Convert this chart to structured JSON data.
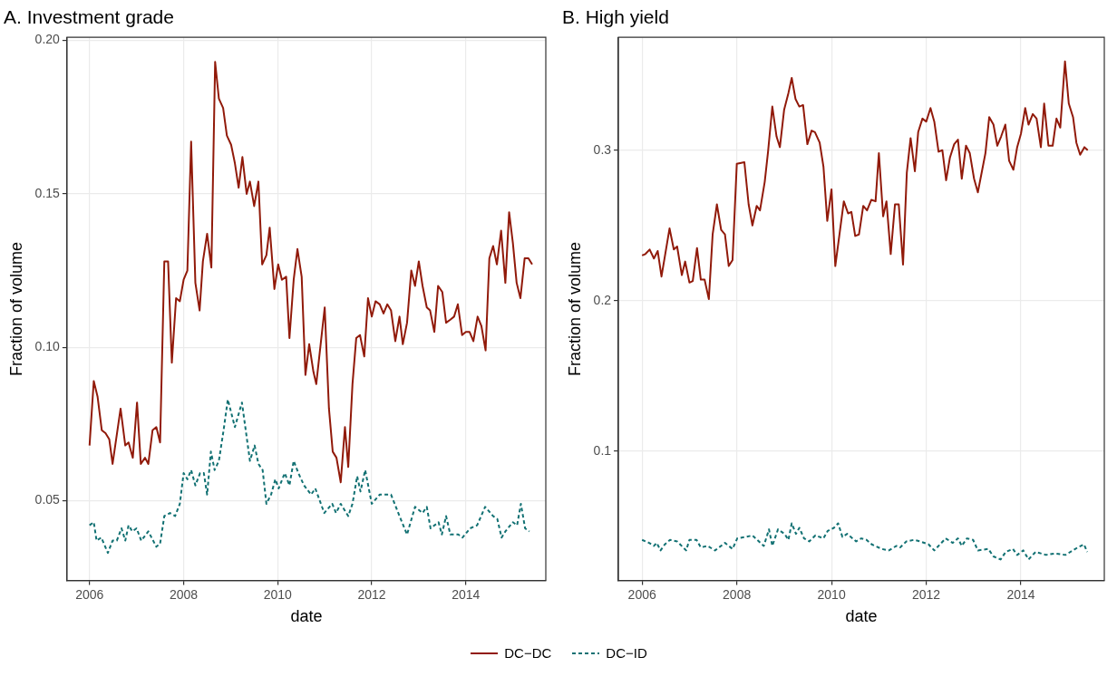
{
  "chart_data": [
    {
      "type": "line",
      "title": "A. Investment grade",
      "xlabel": "date",
      "ylabel": "Fraction of volume",
      "xlim": [
        2005.52,
        2015.7
      ],
      "ylim": [
        0.024,
        0.201
      ],
      "xticks": [
        2006,
        2008,
        2010,
        2012,
        2014
      ],
      "yticks": [
        {
          "value": 0.05,
          "label": "0.05"
        },
        {
          "value": 0.1,
          "label": "0.10"
        },
        {
          "value": 0.15,
          "label": "0.15"
        },
        {
          "value": 0.2,
          "label": "0.20"
        }
      ],
      "grid": true,
      "legend": "bottom",
      "marker": "none",
      "series": [
        {
          "name": "DC−DC",
          "color": "#911a0a",
          "line_style": "solid",
          "x": [
            2006.0,
            2006.09,
            2006.17,
            2006.26,
            2006.34,
            2006.42,
            2006.49,
            2006.66,
            2006.76,
            2006.83,
            2006.92,
            2007.01,
            2007.09,
            2007.18,
            2007.25,
            2007.34,
            2007.42,
            2007.5,
            2007.59,
            2007.67,
            2007.75,
            2007.84,
            2007.92,
            2008.0,
            2008.08,
            2008.16,
            2008.25,
            2008.34,
            2008.41,
            2008.5,
            2008.59,
            2008.67,
            2008.75,
            2008.84,
            2008.92,
            2009.01,
            2009.09,
            2009.17,
            2009.25,
            2009.34,
            2009.41,
            2009.5,
            2009.59,
            2009.67,
            2009.76,
            2009.83,
            2009.93,
            2010.01,
            2010.09,
            2010.18,
            2010.25,
            2010.34,
            2010.42,
            2010.51,
            2010.59,
            2010.67,
            2010.76,
            2010.82,
            2011.0,
            2011.09,
            2011.17,
            2011.25,
            2011.34,
            2011.43,
            2011.5,
            2011.59,
            2011.67,
            2011.75,
            2011.84,
            2011.92,
            2012.0,
            2012.08,
            2012.17,
            2012.25,
            2012.33,
            2012.41,
            2012.5,
            2012.59,
            2012.66,
            2012.75,
            2012.84,
            2012.92,
            2013.0,
            2013.08,
            2013.17,
            2013.24,
            2013.33,
            2013.41,
            2013.5,
            2013.58,
            2013.67,
            2013.75,
            2013.83,
            2013.92,
            2014.0,
            2014.08,
            2014.16,
            2014.25,
            2014.33,
            2014.42,
            2014.5,
            2014.58,
            2014.66,
            2014.75,
            2014.84,
            2014.92,
            2015.0,
            2015.08,
            2015.16,
            2015.25,
            2015.33,
            2015.41
          ],
          "values": [
            0.068,
            0.089,
            0.084,
            0.073,
            0.072,
            0.07,
            0.062,
            0.08,
            0.068,
            0.069,
            0.064,
            0.082,
            0.062,
            0.064,
            0.062,
            0.073,
            0.074,
            0.069,
            0.128,
            0.128,
            0.095,
            0.116,
            0.115,
            0.122,
            0.125,
            0.167,
            0.121,
            0.112,
            0.128,
            0.137,
            0.126,
            0.193,
            0.181,
            0.178,
            0.169,
            0.166,
            0.16,
            0.152,
            0.162,
            0.15,
            0.154,
            0.146,
            0.154,
            0.127,
            0.13,
            0.139,
            0.119,
            0.127,
            0.122,
            0.123,
            0.103,
            0.122,
            0.132,
            0.123,
            0.091,
            0.101,
            0.092,
            0.088,
            0.113,
            0.08,
            0.066,
            0.064,
            0.056,
            0.074,
            0.061,
            0.088,
            0.103,
            0.104,
            0.097,
            0.116,
            0.11,
            0.115,
            0.114,
            0.111,
            0.114,
            0.112,
            0.102,
            0.11,
            0.101,
            0.108,
            0.125,
            0.12,
            0.128,
            0.12,
            0.113,
            0.112,
            0.105,
            0.12,
            0.118,
            0.108,
            0.109,
            0.11,
            0.114,
            0.104,
            0.105,
            0.105,
            0.102,
            0.11,
            0.107,
            0.099,
            0.129,
            0.133,
            0.127,
            0.138,
            0.121,
            0.144,
            0.134,
            0.121,
            0.116,
            0.129,
            0.129,
            0.127
          ]
        },
        {
          "name": "DC−ID",
          "color": "#127173",
          "line_style": "dashed",
          "x": [
            2006.0,
            2006.09,
            2006.15,
            2006.25,
            2006.39,
            2006.49,
            2006.58,
            2006.68,
            2006.76,
            2006.83,
            2006.91,
            2007.0,
            2007.1,
            2007.25,
            2007.42,
            2007.5,
            2007.59,
            2007.71,
            2007.82,
            2007.92,
            2008.0,
            2008.08,
            2008.16,
            2008.25,
            2008.35,
            2008.43,
            2008.5,
            2008.58,
            2008.66,
            2008.75,
            2008.85,
            2008.94,
            2009.09,
            2009.24,
            2009.41,
            2009.51,
            2009.59,
            2009.68,
            2009.76,
            2009.86,
            2009.95,
            2010.02,
            2010.15,
            2010.25,
            2010.34,
            2010.44,
            2010.56,
            2010.71,
            2010.8,
            2010.99,
            2011.16,
            2011.24,
            2011.34,
            2011.5,
            2011.59,
            2011.69,
            2011.76,
            2011.86,
            2012.0,
            2012.17,
            2012.41,
            2012.59,
            2012.75,
            2012.92,
            2013.08,
            2013.17,
            2013.25,
            2013.42,
            2013.49,
            2013.58,
            2013.67,
            2013.84,
            2013.93,
            2014.09,
            2014.24,
            2014.41,
            2014.58,
            2014.67,
            2014.76,
            2014.84,
            2015.0,
            2015.09,
            2015.17,
            2015.26,
            2015.35
          ],
          "values": [
            0.042,
            0.043,
            0.037,
            0.038,
            0.033,
            0.037,
            0.037,
            0.041,
            0.037,
            0.042,
            0.04,
            0.041,
            0.037,
            0.04,
            0.035,
            0.036,
            0.045,
            0.046,
            0.045,
            0.049,
            0.059,
            0.057,
            0.06,
            0.055,
            0.059,
            0.059,
            0.052,
            0.066,
            0.06,
            0.063,
            0.073,
            0.083,
            0.074,
            0.082,
            0.063,
            0.068,
            0.062,
            0.06,
            0.049,
            0.052,
            0.057,
            0.054,
            0.059,
            0.055,
            0.063,
            0.059,
            0.055,
            0.052,
            0.054,
            0.046,
            0.049,
            0.046,
            0.049,
            0.045,
            0.049,
            0.058,
            0.053,
            0.06,
            0.049,
            0.052,
            0.052,
            0.045,
            0.039,
            0.048,
            0.046,
            0.048,
            0.041,
            0.043,
            0.039,
            0.045,
            0.039,
            0.039,
            0.038,
            0.041,
            0.042,
            0.048,
            0.045,
            0.044,
            0.038,
            0.04,
            0.043,
            0.042,
            0.049,
            0.041,
            0.04
          ]
        }
      ]
    },
    {
      "type": "line",
      "title": "B. High yield",
      "xlabel": "date",
      "ylabel": "Fraction of volume",
      "xlim": [
        2005.5,
        2015.76
      ],
      "ylim": [
        0.014,
        0.375
      ],
      "xticks": [
        2006,
        2008,
        2010,
        2012,
        2014
      ],
      "yticks": [
        0.1,
        0.2,
        0.3
      ],
      "grid": true,
      "marker": "none",
      "series": [
        {
          "color": "#911a0a",
          "line_style": "solid",
          "x": [
            2006.0,
            2006.07,
            2006.16,
            2006.25,
            2006.33,
            2006.41,
            2006.58,
            2006.67,
            2006.74,
            2006.84,
            2006.91,
            2007.0,
            2007.07,
            2007.16,
            2007.24,
            2007.32,
            2007.41,
            2007.49,
            2007.58,
            2007.67,
            2007.75,
            2007.83,
            2007.91,
            2008.0,
            2008.16,
            2008.25,
            2008.33,
            2008.42,
            2008.49,
            2008.59,
            2008.66,
            2008.75,
            2008.84,
            2008.91,
            2009.0,
            2009.09,
            2009.16,
            2009.24,
            2009.32,
            2009.4,
            2009.49,
            2009.58,
            2009.65,
            2009.75,
            2009.83,
            2009.91,
            2010.0,
            2010.08,
            2010.26,
            2010.35,
            2010.42,
            2010.5,
            2010.58,
            2010.67,
            2010.75,
            2010.84,
            2010.93,
            2011.0,
            2011.09,
            2011.16,
            2011.25,
            2011.34,
            2011.42,
            2011.51,
            2011.59,
            2011.67,
            2011.76,
            2011.83,
            2011.92,
            2012.0,
            2012.09,
            2012.17,
            2012.26,
            2012.34,
            2012.42,
            2012.5,
            2012.59,
            2012.67,
            2012.75,
            2012.84,
            2012.92,
            2013.01,
            2013.09,
            2013.25,
            2013.33,
            2013.42,
            2013.5,
            2013.58,
            2013.67,
            2013.75,
            2013.84,
            2013.92,
            2014.0,
            2014.09,
            2014.16,
            2014.25,
            2014.33,
            2014.42,
            2014.49,
            2014.58,
            2014.67,
            2014.75,
            2014.83,
            2014.93,
            2015.01,
            2015.1,
            2015.17,
            2015.25,
            2015.34,
            2015.41
          ],
          "values": [
            0.23,
            0.231,
            0.234,
            0.228,
            0.233,
            0.216,
            0.248,
            0.234,
            0.236,
            0.217,
            0.226,
            0.212,
            0.213,
            0.235,
            0.214,
            0.214,
            0.201,
            0.244,
            0.264,
            0.247,
            0.244,
            0.223,
            0.227,
            0.291,
            0.292,
            0.264,
            0.25,
            0.263,
            0.26,
            0.279,
            0.299,
            0.329,
            0.309,
            0.302,
            0.327,
            0.338,
            0.348,
            0.334,
            0.329,
            0.33,
            0.304,
            0.313,
            0.312,
            0.305,
            0.289,
            0.253,
            0.274,
            0.223,
            0.266,
            0.258,
            0.259,
            0.243,
            0.244,
            0.263,
            0.26,
            0.267,
            0.266,
            0.298,
            0.256,
            0.266,
            0.231,
            0.264,
            0.264,
            0.224,
            0.285,
            0.308,
            0.286,
            0.312,
            0.321,
            0.319,
            0.328,
            0.319,
            0.299,
            0.3,
            0.28,
            0.295,
            0.304,
            0.307,
            0.281,
            0.303,
            0.298,
            0.281,
            0.272,
            0.298,
            0.322,
            0.317,
            0.303,
            0.309,
            0.317,
            0.293,
            0.287,
            0.302,
            0.311,
            0.328,
            0.317,
            0.324,
            0.321,
            0.302,
            0.331,
            0.303,
            0.303,
            0.321,
            0.315,
            0.359,
            0.331,
            0.322,
            0.305,
            0.297,
            0.302,
            0.3
          ]
        },
        {
          "color": "#127173",
          "line_style": "dashed",
          "x": [
            2006.0,
            2006.15,
            2006.25,
            2006.31,
            2006.39,
            2006.48,
            2006.59,
            2006.74,
            2006.93,
            2007.0,
            2007.15,
            2007.24,
            2007.38,
            2007.54,
            2007.75,
            2007.91,
            2008.01,
            2008.2,
            2008.33,
            2008.57,
            2008.68,
            2008.75,
            2008.87,
            2009.01,
            2009.09,
            2009.16,
            2009.25,
            2009.32,
            2009.42,
            2009.53,
            2009.66,
            2009.83,
            2009.92,
            2010.05,
            2010.14,
            2010.23,
            2010.33,
            2010.52,
            2010.63,
            2010.74,
            2010.85,
            2011.06,
            2011.21,
            2011.37,
            2011.45,
            2011.58,
            2011.74,
            2011.87,
            2012.05,
            2012.17,
            2012.41,
            2012.56,
            2012.67,
            2012.75,
            2012.86,
            2012.99,
            2013.09,
            2013.31,
            2013.42,
            2013.57,
            2013.68,
            2013.83,
            2013.92,
            2014.05,
            2014.16,
            2014.31,
            2014.53,
            2014.72,
            2014.94,
            2015.2,
            2015.33,
            2015.4
          ],
          "values": [
            0.041,
            0.039,
            0.037,
            0.039,
            0.034,
            0.038,
            0.041,
            0.04,
            0.034,
            0.041,
            0.041,
            0.036,
            0.037,
            0.034,
            0.039,
            0.035,
            0.042,
            0.043,
            0.044,
            0.037,
            0.048,
            0.037,
            0.048,
            0.045,
            0.041,
            0.052,
            0.045,
            0.049,
            0.042,
            0.04,
            0.044,
            0.042,
            0.047,
            0.049,
            0.052,
            0.043,
            0.045,
            0.04,
            0.042,
            0.041,
            0.038,
            0.035,
            0.034,
            0.037,
            0.036,
            0.04,
            0.041,
            0.04,
            0.038,
            0.034,
            0.042,
            0.039,
            0.042,
            0.037,
            0.042,
            0.041,
            0.034,
            0.035,
            0.03,
            0.028,
            0.033,
            0.035,
            0.031,
            0.034,
            0.028,
            0.033,
            0.031,
            0.032,
            0.031,
            0.036,
            0.038,
            0.033
          ]
        }
      ]
    }
  ]
}
